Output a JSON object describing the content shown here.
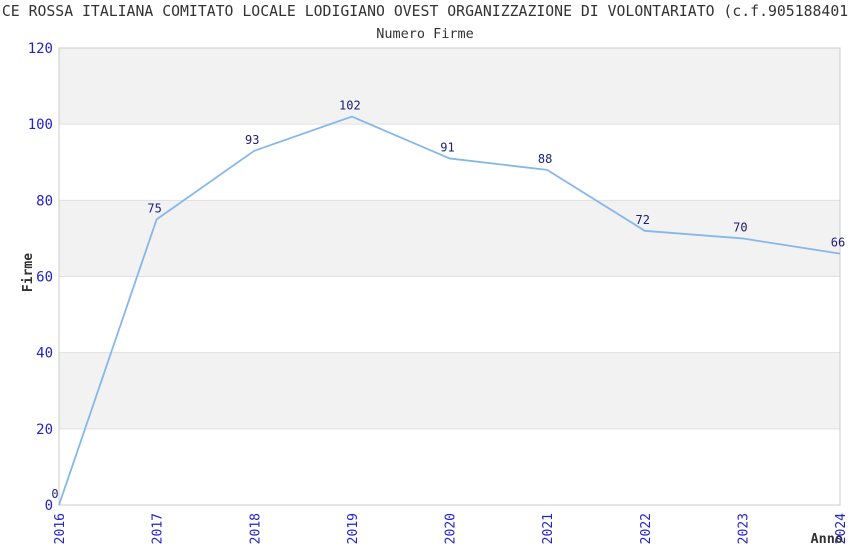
{
  "header": {
    "title": "CE ROSSA ITALIANA COMITATO LOCALE LODIGIANO OVEST ORGANIZZAZIONE DI VOLONTARIATO (c.f.905188401",
    "subtitle": "Numero Firme"
  },
  "chart_data": {
    "type": "line",
    "title": "Numero Firme",
    "categories": [
      "2016",
      "2017",
      "2018",
      "2019",
      "2020",
      "2021",
      "2022",
      "2023",
      "2024"
    ],
    "series": [
      {
        "name": "Firme",
        "values": [
          0,
          75,
          93,
          102,
          91,
          88,
          72,
          70,
          66
        ]
      }
    ],
    "xlabel": "Anno",
    "ylabel": "Firme",
    "ylim": [
      0,
      120
    ],
    "ytick_step": 20,
    "yticks": [
      0,
      20,
      40,
      60,
      80,
      100,
      120
    ],
    "grid": "alternating-horizontal-bands",
    "legend_position": "none",
    "data_labels": true
  },
  "colors": {
    "line": "#85b7ea",
    "tick_label": "#2222cc",
    "data_label": "#1c1c7a",
    "band_fill": "#f2f2f2",
    "band_edge": "#e0e0e0",
    "plot_border": "#cccccc",
    "text": "#333333"
  }
}
